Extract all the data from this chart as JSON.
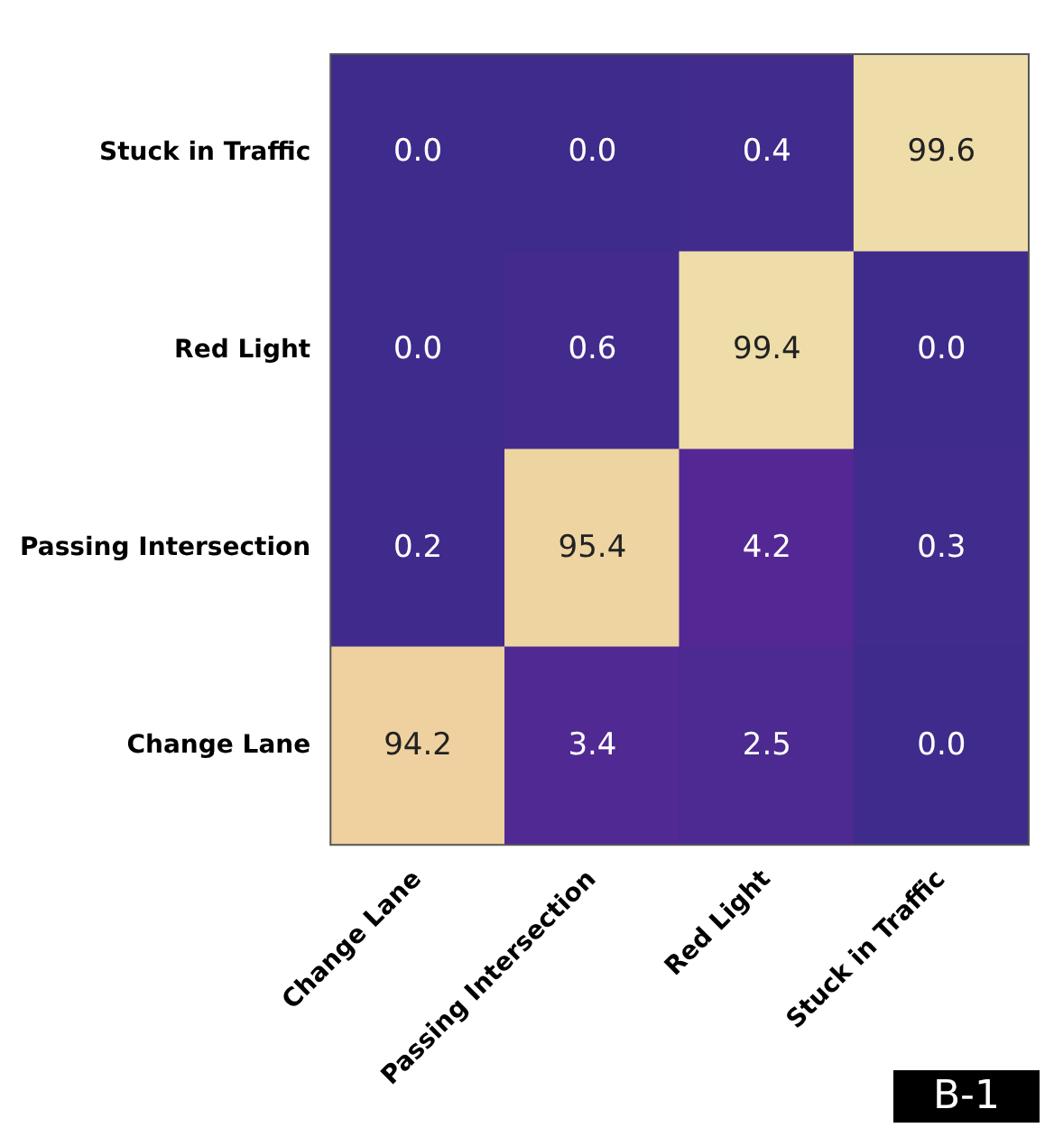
{
  "chart_data": {
    "type": "heatmap",
    "categories": [
      "Change Lane",
      "Passing Intersection",
      "Red Light",
      "Stuck in Traffic"
    ],
    "y_categories": [
      "Stuck in Traffic",
      "Red Light",
      "Passing Intersection",
      "Change Lane"
    ],
    "cells": [
      [
        0.0,
        0.0,
        0.4,
        99.6
      ],
      [
        0.0,
        0.6,
        99.4,
        0.0
      ],
      [
        0.2,
        95.4,
        4.2,
        0.3
      ],
      [
        94.2,
        3.4,
        2.5,
        0.0
      ]
    ],
    "cell_labels": [
      [
        "0.0",
        "0.0",
        "0.4",
        "99.6"
      ],
      [
        "0.0",
        "0.6",
        "99.4",
        "0.0"
      ],
      [
        "0.2",
        "95.4",
        "4.2",
        "0.3"
      ],
      [
        "94.2",
        "3.4",
        "2.5",
        "0.0"
      ]
    ],
    "annotations": [
      "B-1"
    ]
  }
}
